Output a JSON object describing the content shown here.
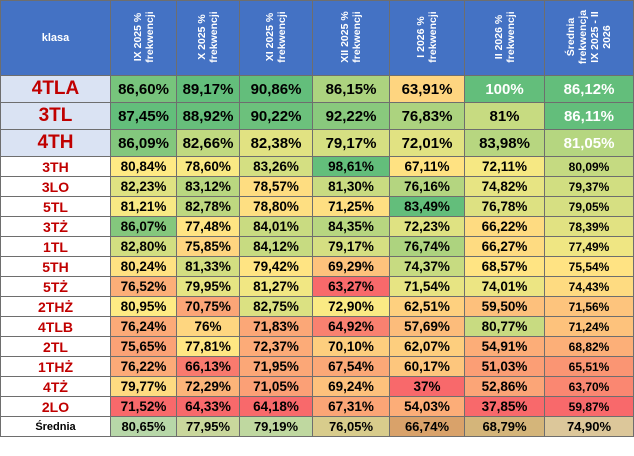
{
  "chart_data": {
    "type": "table",
    "header": {
      "klasa": "klasa",
      "columns": [
        "IX 2025 % frekwencji",
        "X 2025 % frekwencji",
        "XI 2025 % frekwencji",
        "XII 2025 % frekwencji",
        "I 2026 % frekwencji",
        "II 2026 % frekwencji",
        "Średnia frekwencja IX 2025 - II 2026"
      ]
    },
    "rows": [
      {
        "klasa": "4TLA",
        "values": [
          "86,60%",
          "89,17%",
          "90,86%",
          "86,15%",
          "63,91%",
          "100%",
          "86,12%"
        ],
        "num": [
          86.6,
          89.17,
          90.86,
          86.15,
          63.91,
          100,
          86.12
        ],
        "highlight": true
      },
      {
        "klasa": "3TL",
        "values": [
          "87,45%",
          "88,92%",
          "90,22%",
          "92,22%",
          "76,83%",
          "81%",
          "86,11%"
        ],
        "num": [
          87.45,
          88.92,
          90.22,
          92.22,
          76.83,
          81,
          86.11
        ],
        "highlight": true
      },
      {
        "klasa": "4TH",
        "values": [
          "86,09%",
          "82,66%",
          "82,38%",
          "79,17%",
          "72,01%",
          "83,98%",
          "81,05%"
        ],
        "num": [
          86.09,
          82.66,
          82.38,
          79.17,
          72.01,
          83.98,
          81.05
        ],
        "highlight": true
      },
      {
        "klasa": "3TH",
        "values": [
          "80,84%",
          "78,60%",
          "83,26%",
          "98,61%",
          "67,11%",
          "72,11%",
          "80,09%"
        ],
        "num": [
          80.84,
          78.6,
          83.26,
          98.61,
          67.11,
          72.11,
          80.09
        ]
      },
      {
        "klasa": "3LO",
        "values": [
          "82,23%",
          "83,12%",
          "78,57%",
          "81,30%",
          "76,16%",
          "74,82%",
          "79,37%"
        ],
        "num": [
          82.23,
          83.12,
          78.57,
          81.3,
          76.16,
          74.82,
          79.37
        ]
      },
      {
        "klasa": "5TL",
        "values": [
          "81,21%",
          "82,78%",
          "78,80%",
          "71,25%",
          "83,49%",
          "76,78%",
          "79,05%"
        ],
        "num": [
          81.21,
          82.78,
          78.8,
          71.25,
          83.49,
          76.78,
          79.05
        ]
      },
      {
        "klasa": "3TŻ",
        "values": [
          "86,07%",
          "77,48%",
          "84,01%",
          "84,35%",
          "72,23%",
          "66,22%",
          "78,39%"
        ],
        "num": [
          86.07,
          77.48,
          84.01,
          84.35,
          72.23,
          66.22,
          78.39
        ]
      },
      {
        "klasa": "1TL",
        "values": [
          "82,80%",
          "75,85%",
          "84,12%",
          "79,17%",
          "76,74%",
          "66,27%",
          "77,49%"
        ],
        "num": [
          82.8,
          75.85,
          84.12,
          79.17,
          76.74,
          66.27,
          77.49
        ]
      },
      {
        "klasa": "5TH",
        "values": [
          "80,24%",
          "81,33%",
          "79,42%",
          "69,29%",
          "74,37%",
          "68,57%",
          "75,54%"
        ],
        "num": [
          80.24,
          81.33,
          79.42,
          69.29,
          74.37,
          68.57,
          75.54
        ]
      },
      {
        "klasa": "5TŻ",
        "values": [
          "76,52%",
          "79,95%",
          "81,27%",
          "63,27%",
          "71,54%",
          "74,01%",
          "74,43%"
        ],
        "num": [
          76.52,
          79.95,
          81.27,
          63.27,
          71.54,
          74.01,
          74.43
        ]
      },
      {
        "klasa": "2THŻ",
        "values": [
          "80,95%",
          "70,75%",
          "82,75%",
          "72,90%",
          "62,51%",
          "59,50%",
          "71,56%"
        ],
        "num": [
          80.95,
          70.75,
          82.75,
          72.9,
          62.51,
          59.5,
          71.56
        ]
      },
      {
        "klasa": "4TLB",
        "values": [
          "76,24%",
          "76%",
          "71,83%",
          "64,92%",
          "57,69%",
          "80,77%",
          "71,24%"
        ],
        "num": [
          76.24,
          76,
          71.83,
          64.92,
          57.69,
          80.77,
          71.24
        ]
      },
      {
        "klasa": "2TL",
        "values": [
          "75,65%",
          "77,81%",
          "72,37%",
          "70,10%",
          "62,07%",
          "54,91%",
          "68,82%"
        ],
        "num": [
          75.65,
          77.81,
          72.37,
          70.1,
          62.07,
          54.91,
          68.82
        ]
      },
      {
        "klasa": "1THŻ",
        "values": [
          "76,22%",
          "66,13%",
          "71,95%",
          "67,54%",
          "60,17%",
          "51,03%",
          "65,51%"
        ],
        "num": [
          76.22,
          66.13,
          71.95,
          67.54,
          60.17,
          51.03,
          65.51
        ]
      },
      {
        "klasa": "4TŻ",
        "values": [
          "79,77%",
          "72,29%",
          "71,05%",
          "69,24%",
          "37%",
          "52,86%",
          "63,70%"
        ],
        "num": [
          79.77,
          72.29,
          71.05,
          69.24,
          37,
          52.86,
          63.7
        ]
      },
      {
        "klasa": "2LO",
        "values": [
          "71,52%",
          "64,33%",
          "64,18%",
          "67,31%",
          "54,03%",
          "37,85%",
          "59,87%"
        ],
        "num": [
          71.52,
          64.33,
          64.18,
          67.31,
          54.03,
          37.85,
          59.87
        ]
      }
    ],
    "total": {
      "klasa": "Średnia",
      "values": [
        "80,65%",
        "77,95%",
        "79,19%",
        "76,05%",
        "66,74%",
        "68,79%",
        "74,90%"
      ]
    },
    "colors": {
      "low": "#f8696b",
      "mid": "#ffeb84",
      "high": "#63be7b",
      "header": "#4472c4"
    }
  }
}
